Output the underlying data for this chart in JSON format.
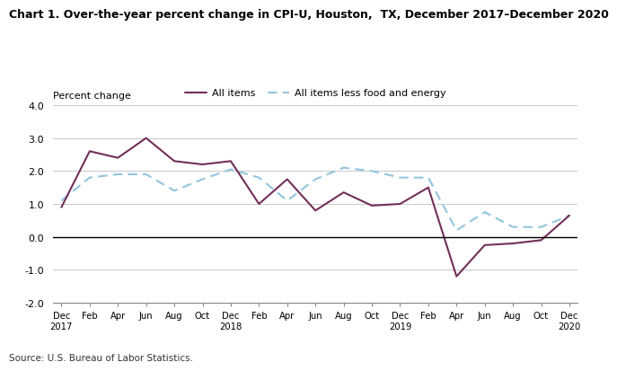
{
  "title": "Chart 1. Over-the-year percent change in CPI-U, Houston,  TX, December 2017–December 2020",
  "ylabel": "Percent change",
  "source": "Source: U.S. Bureau of Labor Statistics.",
  "x_labels": [
    "Dec\n2017",
    "Feb",
    "Apr",
    "Jun",
    "Aug",
    "Oct",
    "Dec\n2018",
    "Feb",
    "Apr",
    "Jun",
    "Aug",
    "Oct",
    "Dec\n2019",
    "Feb",
    "Apr",
    "Jun",
    "Aug",
    "Oct",
    "Dec\n2020"
  ],
  "all_items": [
    0.9,
    2.6,
    2.4,
    3.0,
    2.3,
    2.2,
    2.3,
    1.0,
    1.75,
    0.8,
    1.35,
    0.95,
    1.0,
    1.5,
    -1.2,
    -0.25,
    -0.2,
    -0.1,
    0.65
  ],
  "less_food_energy": [
    1.1,
    1.8,
    1.9,
    1.9,
    1.4,
    1.75,
    2.05,
    1.8,
    1.1,
    1.75,
    2.1,
    2.0,
    1.8,
    1.8,
    0.2,
    0.75,
    0.3,
    0.3,
    0.65
  ],
  "all_items_color": "#722F5A",
  "less_food_energy_color": "#92C5DE",
  "ylim": [
    -2.0,
    4.0
  ],
  "yticks": [
    -2.0,
    -1.0,
    0.0,
    1.0,
    2.0,
    3.0,
    4.0
  ],
  "legend_labels": [
    "All items",
    "All items less food and energy"
  ],
  "background_color": "#ffffff",
  "grid_color": "#cccccc"
}
